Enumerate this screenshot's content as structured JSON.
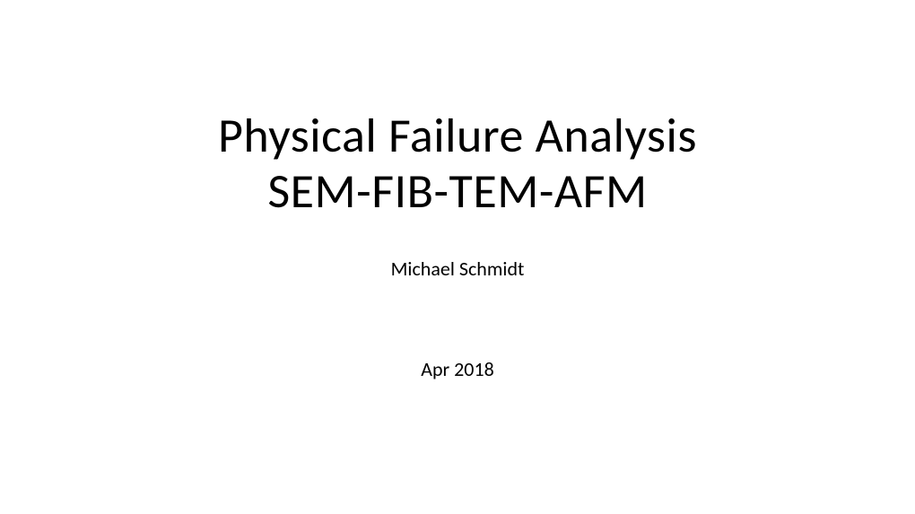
{
  "slide": {
    "title_line1": "Physical Failure Analysis",
    "title_line2": "SEM-FIB-TEM-AFM",
    "author": "Michael Schmidt",
    "date": "Apr 2018",
    "background_color": "#ffffff",
    "text_color": "#000000",
    "title_fontsize": 54,
    "author_fontsize": 22,
    "date_fontsize": 22,
    "font_family": "Calibri"
  }
}
